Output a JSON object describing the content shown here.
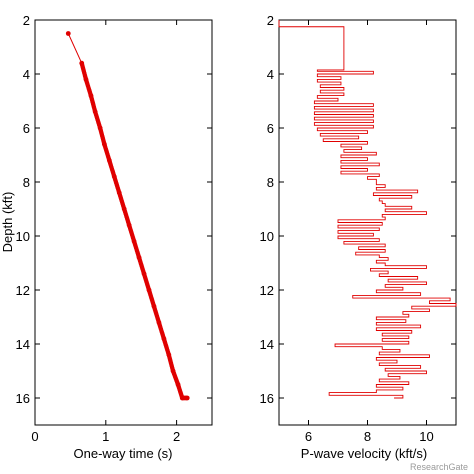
{
  "chart_data": [
    {
      "type": "scatter",
      "xlabel": "One-way time (s)",
      "ylabel": "Depth (kft)",
      "xlim": [
        0,
        2.5
      ],
      "ylim": [
        2,
        17
      ],
      "y_reversed": true,
      "xticks": [
        0,
        1,
        2
      ],
      "yticks": [
        2,
        4,
        6,
        8,
        10,
        12,
        14,
        16
      ],
      "marker_color": "#e00000",
      "series": [
        {
          "x": [
            0.47,
            0.66,
            0.72,
            0.79,
            0.85,
            0.92,
            0.98,
            1.05,
            1.12,
            1.19,
            1.26,
            1.33,
            1.4,
            1.47,
            1.54,
            1.61,
            1.68,
            1.75,
            1.82,
            1.89,
            1.95,
            2.02,
            2.08,
            2.15
          ],
          "y": [
            2.5,
            3.6,
            4.2,
            4.8,
            5.4,
            6.0,
            6.6,
            7.2,
            7.8,
            8.4,
            9.0,
            9.6,
            10.2,
            10.8,
            11.4,
            12.0,
            12.6,
            13.2,
            13.8,
            14.4,
            15.0,
            15.5,
            16.0,
            16.0
          ]
        }
      ]
    },
    {
      "type": "line",
      "xlabel": "P-wave velocity (kft/s)",
      "ylabel": "",
      "xlim": [
        5,
        11
      ],
      "ylim": [
        2,
        17
      ],
      "y_reversed": true,
      "xticks": [
        6,
        8,
        10
      ],
      "yticks": [
        2,
        4,
        6,
        8,
        10,
        12,
        14,
        16
      ],
      "line_color": "#e00000",
      "series": [
        {
          "depth": [
            2.0,
            2.25,
            2.25,
            3.8,
            3.85,
            3.9,
            4.0,
            4.1,
            4.2,
            4.3,
            4.4,
            4.5,
            4.6,
            4.7,
            4.8,
            4.9,
            5.0,
            5.1,
            5.2,
            5.3,
            5.4,
            5.5,
            5.6,
            5.7,
            5.8,
            5.9,
            6.0,
            6.1,
            6.2,
            6.3,
            6.4,
            6.5,
            6.6,
            6.7,
            6.8,
            6.9,
            7.0,
            7.1,
            7.2,
            7.3,
            7.4,
            7.5,
            7.6,
            7.7,
            7.8,
            7.9,
            8.0,
            8.1,
            8.2,
            8.3,
            8.4,
            8.5,
            8.6,
            8.7,
            8.8,
            8.9,
            9.0,
            9.1,
            9.2,
            9.3,
            9.4,
            9.5,
            9.6,
            9.7,
            9.8,
            9.9,
            10.0,
            10.1,
            10.2,
            10.3,
            10.4,
            10.5,
            10.6,
            10.7,
            10.8,
            10.9,
            11.0,
            11.1,
            11.2,
            11.3,
            11.4,
            11.5,
            11.6,
            11.7,
            11.8,
            11.9,
            12.0,
            12.1,
            12.2,
            12.3,
            12.4,
            12.5,
            12.6,
            12.7,
            12.8,
            12.9,
            13.0,
            13.1,
            13.2,
            13.3,
            13.4,
            13.5,
            13.6,
            13.7,
            13.8,
            13.9,
            14.0,
            14.1,
            14.2,
            14.3,
            14.4,
            14.5,
            14.6,
            14.7,
            14.8,
            14.9,
            15.0,
            15.1,
            15.2,
            15.3,
            15.4,
            15.5,
            15.6,
            15.7,
            15.8,
            15.9,
            16.0
          ],
          "velocity": [
            5.0,
            5.0,
            7.2,
            7.2,
            6.3,
            8.2,
            6.3,
            7.1,
            6.3,
            7.1,
            6.4,
            7.2,
            6.4,
            7.2,
            6.3,
            7.0,
            6.2,
            8.2,
            6.2,
            8.2,
            6.2,
            8.2,
            6.2,
            8.2,
            6.2,
            8.2,
            6.3,
            8.0,
            6.4,
            7.7,
            6.5,
            8.0,
            7.1,
            7.8,
            7.2,
            8.3,
            7.1,
            8.0,
            7.1,
            8.4,
            7.1,
            8.0,
            7.1,
            8.4,
            8.0,
            8.3,
            8.3,
            8.6,
            8.3,
            9.7,
            8.2,
            9.5,
            8.4,
            8.5,
            8.6,
            9.5,
            8.6,
            10.0,
            8.5,
            8.6,
            7.0,
            8.5,
            7.0,
            8.4,
            7.0,
            8.2,
            7.0,
            8.4,
            7.2,
            8.6,
            7.7,
            8.6,
            7.6,
            8.4,
            8.7,
            8.3,
            8.6,
            10.0,
            8.1,
            8.7,
            8.4,
            9.7,
            8.7,
            10.0,
            8.6,
            9.2,
            8.3,
            9.8,
            7.5,
            10.8,
            10.1,
            11.0,
            9.5,
            10.1,
            9.2,
            9.4,
            8.3,
            9.3,
            8.3,
            9.8,
            8.3,
            9.5,
            8.5,
            9.4,
            8.5,
            9.4,
            6.9,
            8.5,
            9.1,
            8.4,
            10.1,
            8.3,
            9.0,
            8.4,
            9.8,
            8.6,
            10.0,
            8.7,
            9.1,
            8.4,
            9.4,
            8.3,
            9.2,
            8.3,
            6.7,
            9.2,
            8.9,
            9.5,
            10.1
          ]
        }
      ]
    }
  ],
  "watermark": "ResearchGate"
}
